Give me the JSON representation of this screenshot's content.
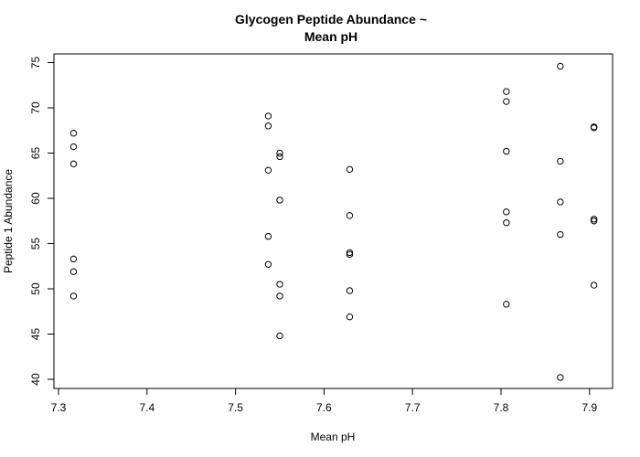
{
  "chart_data": {
    "type": "scatter",
    "title": [
      "Glycogen Peptide Abundance ~",
      "Mean pH"
    ],
    "xlabel": "Mean pH",
    "ylabel": "Peptide 1 Abundance",
    "xlim": [
      7.3,
      7.91
    ],
    "ylim": [
      39.5,
      75.5
    ],
    "xticks": [
      7.3,
      7.4,
      7.5,
      7.6,
      7.7,
      7.8,
      7.9
    ],
    "xtick_labels": [
      "7.3",
      "7.4",
      "7.5",
      "7.6",
      "7.7",
      "7.8",
      "7.9"
    ],
    "yticks": [
      40,
      45,
      50,
      55,
      60,
      65,
      70,
      75
    ],
    "ytick_labels": [
      "40",
      "45",
      "50",
      "55",
      "60",
      "65",
      "70",
      "75"
    ],
    "grid": false,
    "marker": "open-circle",
    "points": [
      {
        "x": 7.317,
        "y": 67.2
      },
      {
        "x": 7.317,
        "y": 65.7
      },
      {
        "x": 7.317,
        "y": 63.8
      },
      {
        "x": 7.317,
        "y": 53.3
      },
      {
        "x": 7.317,
        "y": 51.9
      },
      {
        "x": 7.317,
        "y": 49.2
      },
      {
        "x": 7.537,
        "y": 69.1
      },
      {
        "x": 7.537,
        "y": 68.0
      },
      {
        "x": 7.537,
        "y": 63.1
      },
      {
        "x": 7.537,
        "y": 55.8
      },
      {
        "x": 7.537,
        "y": 52.7
      },
      {
        "x": 7.55,
        "y": 65.0
      },
      {
        "x": 7.55,
        "y": 64.6
      },
      {
        "x": 7.55,
        "y": 59.8
      },
      {
        "x": 7.55,
        "y": 50.5
      },
      {
        "x": 7.55,
        "y": 49.2
      },
      {
        "x": 7.55,
        "y": 44.8
      },
      {
        "x": 7.629,
        "y": 63.2
      },
      {
        "x": 7.629,
        "y": 58.1
      },
      {
        "x": 7.629,
        "y": 54.0
      },
      {
        "x": 7.629,
        "y": 53.8
      },
      {
        "x": 7.629,
        "y": 49.8
      },
      {
        "x": 7.629,
        "y": 46.9
      },
      {
        "x": 7.806,
        "y": 71.8
      },
      {
        "x": 7.806,
        "y": 70.7
      },
      {
        "x": 7.806,
        "y": 65.2
      },
      {
        "x": 7.806,
        "y": 58.5
      },
      {
        "x": 7.806,
        "y": 57.3
      },
      {
        "x": 7.806,
        "y": 48.3
      },
      {
        "x": 7.867,
        "y": 74.6
      },
      {
        "x": 7.867,
        "y": 64.1
      },
      {
        "x": 7.867,
        "y": 59.6
      },
      {
        "x": 7.867,
        "y": 56.0
      },
      {
        "x": 7.867,
        "y": 40.2
      },
      {
        "x": 7.905,
        "y": 67.9
      },
      {
        "x": 7.905,
        "y": 67.8
      },
      {
        "x": 7.905,
        "y": 57.7
      },
      {
        "x": 7.905,
        "y": 57.5
      },
      {
        "x": 7.905,
        "y": 50.4
      }
    ]
  }
}
